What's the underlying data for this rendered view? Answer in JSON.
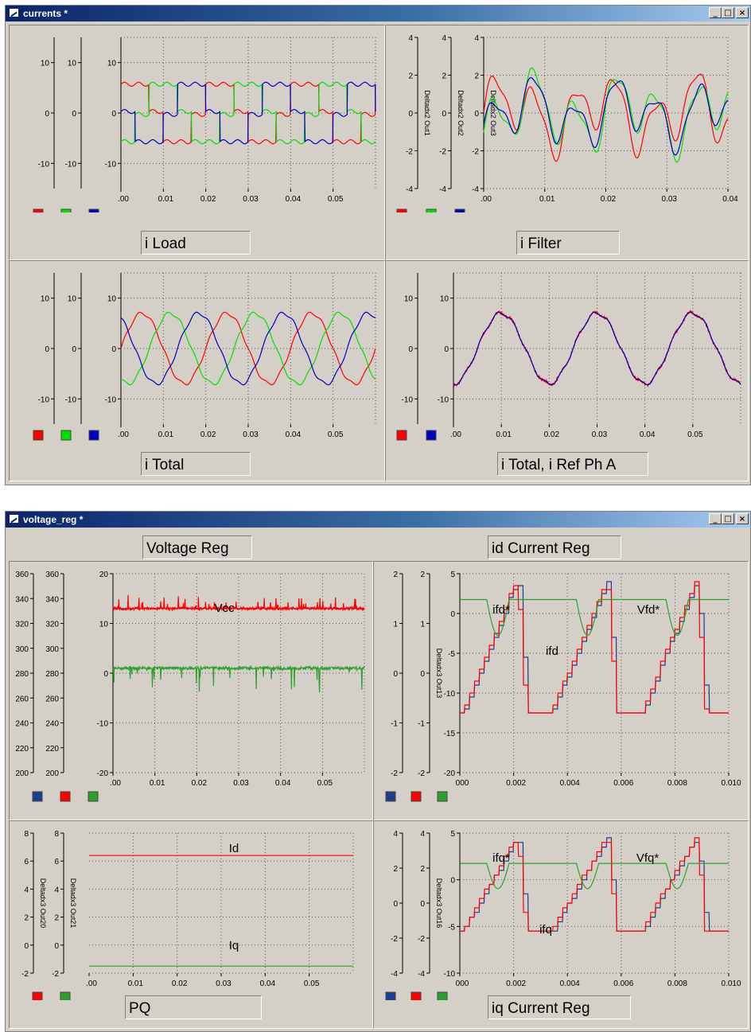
{
  "windows": [
    {
      "title": "currents *",
      "minimize": "_",
      "maximize": "□",
      "close": "×",
      "panels": [
        {
          "id": "p1",
          "caption": "i Load",
          "axes": [
            {
              "ticks": [
                10,
                0,
                -10
              ],
              "min": -15,
              "max": 15
            },
            {
              "ticks": [
                10,
                0,
                -10
              ],
              "min": -15,
              "max": 15
            },
            {
              "ticks": [
                10,
                0,
                -10
              ],
              "min": -15,
              "max": 15
            }
          ],
          "xticks": [
            ".00",
            "0.01",
            "0.02",
            "0.03",
            "0.04",
            "0.05"
          ],
          "legend": [
            "#ff0000",
            "#00e000",
            "#0000c0"
          ]
        },
        {
          "id": "p2",
          "caption": "i Filter",
          "axes": [
            {
              "ticks": [
                4,
                2,
                0,
                -2,
                -4
              ],
              "min": -4,
              "max": 4,
              "label": "Deltadx2 Out1"
            },
            {
              "ticks": [
                4,
                2,
                0,
                -2,
                -4
              ],
              "min": -4,
              "max": 4,
              "label": "Deltadx2 Out2"
            },
            {
              "ticks": [
                4,
                2,
                0,
                -2,
                -4
              ],
              "min": -4,
              "max": 4,
              "label": "Deltadx2 Out3"
            }
          ],
          "xticks": [
            ".00",
            "0.01",
            "0.02",
            "0.03",
            "0.04"
          ],
          "legend": [
            "#ff0000",
            "#00e000",
            "#0000c0"
          ]
        },
        {
          "id": "p3",
          "caption": "i Total",
          "axes": [
            {
              "ticks": [
                10,
                0,
                -10
              ],
              "min": -15,
              "max": 15
            },
            {
              "ticks": [
                10,
                0,
                -10
              ],
              "min": -15,
              "max": 15
            },
            {
              "ticks": [
                10,
                0,
                -10
              ],
              "min": -15,
              "max": 15
            }
          ],
          "xticks": [
            ".00",
            "0.01",
            "0.02",
            "0.03",
            "0.04",
            "0.05"
          ],
          "legend": [
            "#ff0000",
            "#00e000",
            "#0000c0"
          ]
        },
        {
          "id": "p4",
          "caption": "i Total, i Ref Ph A",
          "axes": [
            {
              "ticks": [
                10,
                0,
                -10
              ],
              "min": -15,
              "max": 15
            },
            {
              "ticks": [
                10,
                0,
                -10
              ],
              "min": -15,
              "max": 15
            }
          ],
          "xticks": [
            ".00",
            "0.01",
            "0.02",
            "0.03",
            "0.04",
            "0.05"
          ],
          "legend": [
            "#ff0000",
            "#0000c0"
          ]
        }
      ]
    },
    {
      "title": "voltage_reg *",
      "minimize": "_",
      "maximize": "□",
      "close": "×",
      "top_captions": [
        "Voltage Reg",
        "id Current Reg"
      ],
      "panels": [
        {
          "id": "p5",
          "axes": [
            {
              "ticks": [
                360,
                340,
                320,
                300,
                280,
                260,
                240,
                220,
                200
              ],
              "min": 200,
              "max": 360
            },
            {
              "ticks": [
                360,
                340,
                320,
                300,
                280,
                260,
                240,
                220,
                200
              ],
              "min": 200,
              "max": 360
            },
            {
              "ticks": [
                20,
                10,
                0,
                -10,
                -20
              ],
              "min": -20,
              "max": 20
            }
          ],
          "xticks": [
            ".00",
            "0.01",
            "0.02",
            "0.03",
            "0.04",
            "0.05"
          ],
          "legend": [
            "#1f3d8f",
            "#ff0000",
            "#2ca02c"
          ],
          "labels": [
            {
              "text": "Vcc"
            }
          ]
        },
        {
          "id": "p6",
          "axes": [
            {
              "ticks": [
                2,
                1,
                0,
                -1,
                -2
              ],
              "min": -2,
              "max": 2
            },
            {
              "ticks": [
                2,
                1,
                0,
                -1,
                -2
              ],
              "min": -2,
              "max": 2,
              "label": "Deltadx3 Out13"
            },
            {
              "ticks": [
                5,
                0,
                -5,
                -10,
                -15,
                -20
              ],
              "min": -20,
              "max": 5
            }
          ],
          "xticks": [
            "000",
            "0.002",
            "0.004",
            "0.006",
            "0.008",
            "0.010"
          ],
          "legend": [
            "#1f3d8f",
            "#ff0000",
            "#2ca02c"
          ],
          "labels": [
            {
              "text": "ifd*"
            },
            {
              "text": "ifd"
            },
            {
              "text": "Vfd*"
            }
          ]
        },
        {
          "id": "p7",
          "caption": "PQ",
          "axes": [
            {
              "ticks": [
                8,
                6,
                4,
                2,
                0,
                -2
              ],
              "min": -2,
              "max": 8,
              "label": "Deltadx3 Out20"
            },
            {
              "ticks": [
                8,
                6,
                4,
                2,
                0,
                -2
              ],
              "min": -2,
              "max": 8,
              "label": "Deltadx3 Out21"
            }
          ],
          "xticks": [
            ".00",
            "0.01",
            "0.02",
            "0.03",
            "0.04",
            "0.05"
          ],
          "legend": [
            "#ff0000",
            "#2ca02c"
          ],
          "labels": [
            {
              "text": "Id"
            },
            {
              "text": "Iq"
            }
          ]
        },
        {
          "id": "p8",
          "caption": "iq Current Reg",
          "axes": [
            {
              "ticks": [
                4,
                2,
                0,
                -2,
                -4
              ],
              "min": -4,
              "max": 4
            },
            {
              "ticks": [
                4,
                2,
                0,
                -2,
                -4
              ],
              "min": -4,
              "max": 4,
              "label": "Deltadx3 Out16"
            },
            {
              "ticks": [
                5,
                0,
                -5,
                -10
              ],
              "min": -10,
              "max": 5
            }
          ],
          "xticks": [
            "000",
            "0.002",
            "0.004",
            "0.006",
            "0.008",
            "0.010"
          ],
          "legend": [
            "#1f3d8f",
            "#ff0000",
            "#2ca02c"
          ],
          "labels": [
            {
              "text": "ifq*"
            },
            {
              "text": "ifq"
            },
            {
              "text": "Vfq*"
            }
          ]
        }
      ]
    }
  ],
  "chart_data": [
    {
      "type": "line",
      "id": "p1",
      "title": "i Load",
      "x_range": [
        0,
        0.06
      ],
      "ylim": [
        -15,
        15
      ],
      "x_ticks": [
        0,
        0.01,
        0.02,
        0.03,
        0.04,
        0.05
      ],
      "series": [
        {
          "color": "#ff0000",
          "shape": "square",
          "amplitude": 6,
          "frequency_hz": 50,
          "phase_deg": 0
        },
        {
          "color": "#00e000",
          "shape": "square",
          "amplitude": 6,
          "frequency_hz": 50,
          "phase_deg": -120
        },
        {
          "color": "#0000c0",
          "shape": "square",
          "amplitude": 6,
          "frequency_hz": 50,
          "phase_deg": 120
        }
      ]
    },
    {
      "type": "line",
      "id": "p2",
      "title": "i Filter",
      "x_range": [
        0,
        0.04
      ],
      "ylim": [
        -4,
        4
      ],
      "x_ticks": [
        0,
        0.01,
        0.02,
        0.03,
        0.04
      ],
      "series": [
        {
          "color": "#ff0000",
          "shape": "ripple",
          "amplitude": 2.5,
          "phase_deg": 0
        },
        {
          "color": "#00e000",
          "shape": "ripple",
          "amplitude": 2.5,
          "phase_deg": -120
        },
        {
          "color": "#0000c0",
          "shape": "ripple",
          "amplitude": 2.2,
          "phase_deg": 120
        }
      ]
    },
    {
      "type": "line",
      "id": "p3",
      "title": "i Total",
      "x_range": [
        0,
        0.06
      ],
      "ylim": [
        -15,
        15
      ],
      "x_ticks": [
        0,
        0.01,
        0.02,
        0.03,
        0.04,
        0.05
      ],
      "series": [
        {
          "color": "#ff0000",
          "shape": "sine",
          "amplitude": 7,
          "frequency_hz": 50,
          "phase_deg": 0
        },
        {
          "color": "#00e000",
          "shape": "sine",
          "amplitude": 7,
          "frequency_hz": 50,
          "phase_deg": -120
        },
        {
          "color": "#0000c0",
          "shape": "sine",
          "amplitude": 7,
          "frequency_hz": 50,
          "phase_deg": 120
        }
      ]
    },
    {
      "type": "line",
      "id": "p4",
      "title": "i Total, i Ref Ph A",
      "x_range": [
        0,
        0.06
      ],
      "ylim": [
        -15,
        15
      ],
      "x_ticks": [
        0,
        0.01,
        0.02,
        0.03,
        0.04,
        0.05
      ],
      "series": [
        {
          "color": "#ff0000",
          "shape": "sine",
          "amplitude": 7,
          "frequency_hz": 50,
          "phase_deg": -90
        },
        {
          "color": "#0000c0",
          "shape": "sine",
          "amplitude": 7,
          "frequency_hz": 50,
          "phase_deg": -90
        }
      ]
    },
    {
      "type": "line",
      "id": "p5",
      "title": "Voltage Reg",
      "x_range": [
        0,
        0.06
      ],
      "ylim": [
        -20,
        20
      ],
      "x_ticks": [
        0,
        0.01,
        0.02,
        0.03,
        0.04,
        0.05
      ],
      "series": [
        {
          "color": "#1f3d8f",
          "level": 13,
          "shape": "flat"
        },
        {
          "color": "#ff0000",
          "level": 13,
          "shape": "noisy"
        },
        {
          "color": "#2ca02c",
          "level": 1,
          "shape": "noisy"
        }
      ]
    },
    {
      "type": "line",
      "id": "p6",
      "title": "id Current Reg",
      "x_range": [
        0,
        0.01
      ],
      "ylim": [
        -20,
        5
      ],
      "x_ticks": [
        0,
        0.002,
        0.004,
        0.006,
        0.008,
        0.01
      ],
      "series": [
        {
          "color": "#1f3d8f",
          "shape": "sawtooth-step"
        },
        {
          "color": "#ff0000",
          "shape": "sawtooth-step"
        },
        {
          "color": "#2ca02c",
          "shape": "smooth"
        }
      ]
    },
    {
      "type": "line",
      "id": "p7",
      "title": "PQ",
      "x_range": [
        0,
        0.06
      ],
      "ylim": [
        -2,
        8
      ],
      "x_ticks": [
        0,
        0.01,
        0.02,
        0.03,
        0.04,
        0.05
      ],
      "series": [
        {
          "color": "#ff0000",
          "level": 6.4,
          "shape": "flat"
        },
        {
          "color": "#2ca02c",
          "level": -1.5,
          "shape": "flat"
        }
      ]
    },
    {
      "type": "line",
      "id": "p8",
      "title": "iq Current Reg",
      "x_range": [
        0,
        0.01
      ],
      "ylim": [
        -10,
        5
      ],
      "x_ticks": [
        0,
        0.002,
        0.004,
        0.006,
        0.008,
        0.01
      ],
      "series": [
        {
          "color": "#1f3d8f",
          "shape": "sawtooth-step"
        },
        {
          "color": "#ff0000",
          "shape": "sawtooth-step"
        },
        {
          "color": "#2ca02c",
          "shape": "smooth"
        }
      ]
    }
  ]
}
